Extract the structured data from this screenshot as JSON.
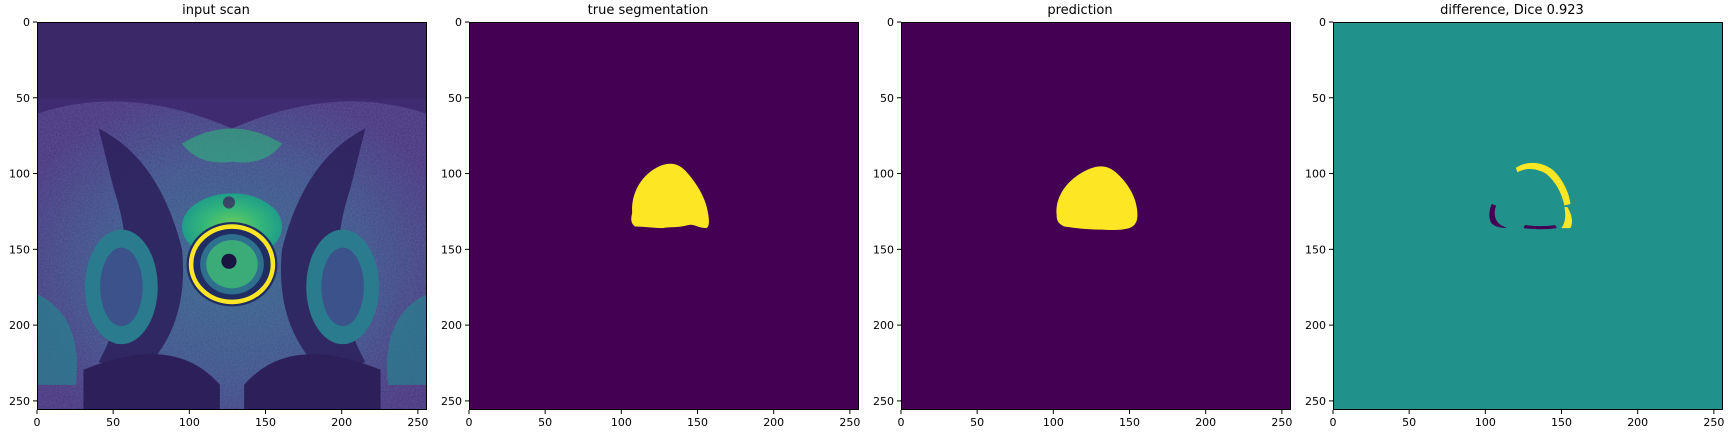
{
  "figure": {
    "panels": [
      {
        "key": "input",
        "title": "input scan"
      },
      {
        "key": "truth",
        "title": "true segmentation"
      },
      {
        "key": "pred",
        "title": "prediction"
      },
      {
        "key": "diff",
        "title": "difference, Dice 0.923"
      }
    ],
    "axis": {
      "xlim": [
        0,
        256
      ],
      "ylim": [
        0,
        256
      ],
      "x_ticks": [
        0,
        50,
        100,
        150,
        200,
        250
      ],
      "y_ticks": [
        0,
        50,
        100,
        150,
        200,
        250
      ],
      "y_inverted": true
    },
    "colormap": "viridis",
    "colors": {
      "background_mask": "#440154",
      "foreground_mask": "#fde725",
      "diff_zero": "#21918c",
      "scan_dark": "#3b2a6e",
      "scan_bright": "#5ec962"
    }
  }
}
